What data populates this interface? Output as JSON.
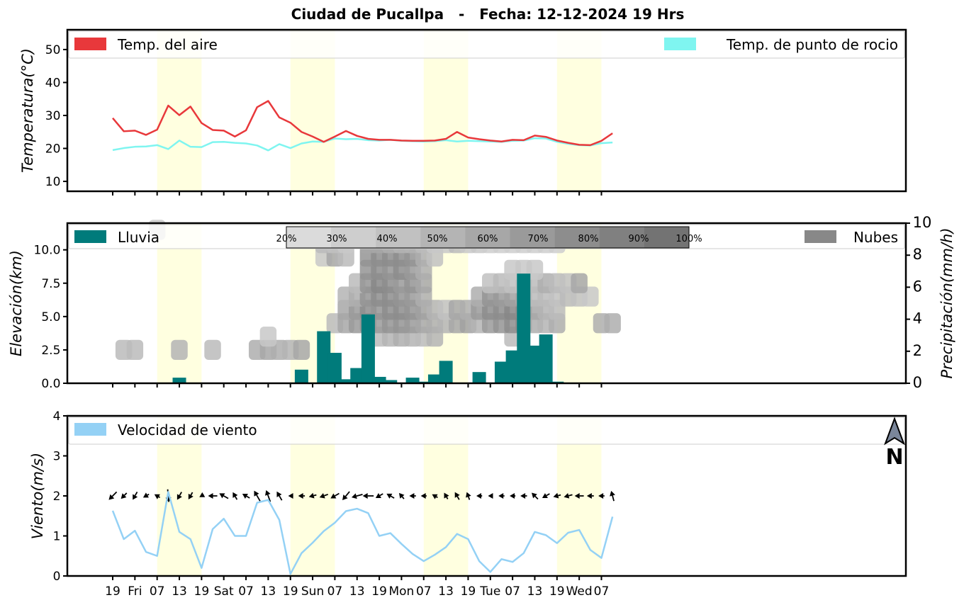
{
  "title": "Ciudad de Pucallpa   -   Fecha: 12-12-2024 19 Hrs",
  "x_tick_labels": [
    "19",
    "Fri",
    "07",
    "13",
    "19",
    "Sat",
    "07",
    "13",
    "19",
    "Sun",
    "07",
    "13",
    "19",
    "Mon",
    "07",
    "13",
    "19",
    "Tue",
    "07",
    "13",
    "19",
    "Wed",
    "07"
  ],
  "colors": {
    "air_temp": "#e8383b",
    "dew_point": "#7ff5f0",
    "rain": "#007b7b",
    "clouds": "#888888",
    "wind_speed": "#94d1f5",
    "daylight": "#ffffe0"
  },
  "chart_data": [
    {
      "type": "line",
      "ylabel": "Temperatura(°C)",
      "ylim": [
        7,
        56
      ],
      "yticks": [
        "10",
        "20",
        "30",
        "40",
        "50"
      ],
      "x_unit": "hours from first tick (3-hour step)",
      "series": [
        {
          "name": "Temp. del aire",
          "values": [
            29.2,
            25.2,
            25.4,
            24.1,
            25.7,
            33.0,
            30.1,
            32.7,
            27.7,
            25.6,
            25.4,
            23.6,
            25.5,
            32.5,
            34.4,
            29.4,
            27.8,
            25.0,
            23.6,
            22.0,
            23.6,
            25.3,
            23.8,
            22.9,
            22.6,
            22.6,
            22.4,
            22.3,
            22.3,
            22.4,
            22.9,
            25.0,
            23.3,
            22.8,
            22.4,
            22.1,
            22.6,
            22.5,
            23.9,
            23.5,
            22.4,
            21.7,
            21.1,
            21.0,
            22.3,
            24.6
          ]
        },
        {
          "name": "Temp. de punto de rocio",
          "values": [
            19.5,
            20.1,
            20.5,
            20.6,
            21.0,
            19.8,
            22.4,
            20.5,
            20.4,
            21.9,
            22.0,
            21.7,
            21.5,
            20.9,
            19.4,
            21.3,
            20.1,
            21.5,
            22.1,
            22.0,
            23.0,
            22.8,
            22.9,
            22.5,
            22.4,
            22.6,
            22.3,
            22.2,
            22.1,
            22.2,
            22.5,
            22.1,
            22.3,
            22.2,
            22.1,
            22.0,
            22.3,
            22.4,
            23.1,
            23.0,
            22.0,
            21.4,
            21.0,
            20.9,
            21.6,
            21.8
          ]
        }
      ],
      "legend": {
        "left": "top-left",
        "right": "top-right"
      }
    },
    {
      "type": "bar",
      "ylabel": "Elevación(km)",
      "ylim": [
        0,
        12
      ],
      "yticks": [
        "0.0",
        "2.5",
        "5.0",
        "7.5",
        "10.0"
      ],
      "y2label": "Precipitación(mm/h)",
      "y2lim": [
        0,
        10
      ],
      "y2ticks": [
        "0",
        "2",
        "4",
        "6",
        "8",
        "10"
      ],
      "series": [
        {
          "name": "Lluvia",
          "values": [
            0,
            0,
            0,
            0,
            0,
            0,
            0.35,
            0,
            0,
            0,
            0,
            0,
            0,
            0,
            0,
            0,
            0,
            0.85,
            0,
            3.25,
            1.9,
            0.25,
            0.95,
            4.3,
            0.4,
            0.2,
            0,
            0.35,
            0.1,
            0.55,
            1.4,
            0,
            0,
            0.7,
            0,
            1.35,
            2.05,
            6.85,
            2.35,
            3.05,
            0.1,
            0,
            0,
            0,
            0,
            0
          ]
        },
        {
          "name": "Nubes"
        }
      ],
      "colorbar_labels": [
        "20%",
        "30%",
        "40%",
        "50%",
        "60%",
        "70%",
        "80%",
        "90%",
        "100%"
      ],
      "cloud_grid": {
        "elevation_km": [
          1.5,
          2.5,
          3.5,
          4.5,
          5.5,
          6.5,
          7.5,
          8.5,
          9.5,
          10.5,
          11.5
        ],
        "coverage_fraction": [
          [
            0,
            0,
            0,
            0,
            0,
            0,
            0,
            0,
            0,
            0,
            0,
            0,
            0,
            0,
            0,
            0,
            0,
            0,
            0,
            0,
            0,
            0,
            0,
            0,
            0,
            0,
            0,
            0,
            0,
            0,
            0,
            0,
            0,
            0,
            0,
            0,
            0,
            0,
            0,
            0,
            0,
            0,
            0,
            0,
            0,
            0
          ],
          [
            0,
            0.45,
            0.45,
            0,
            0,
            0,
            0.5,
            0,
            0,
            0.45,
            0,
            0,
            0,
            0.55,
            0.6,
            0.55,
            0.5,
            0.6,
            0,
            0,
            0,
            0,
            0,
            0,
            0,
            0,
            0,
            0,
            0,
            0,
            0,
            0,
            0,
            0,
            0,
            0,
            0,
            0,
            0,
            0,
            0,
            0,
            0,
            0,
            0,
            0
          ],
          [
            0,
            0,
            0,
            0,
            0,
            0,
            0,
            0,
            0,
            0,
            0,
            0,
            0,
            0,
            0.35,
            0,
            0,
            0,
            0,
            0,
            0,
            0,
            0,
            0,
            0.45,
            0.5,
            0.55,
            0.5,
            0.45,
            0.5,
            0,
            0,
            0,
            0,
            0,
            0,
            0.45,
            0,
            0,
            0,
            0,
            0,
            0,
            0,
            0,
            0
          ],
          [
            0,
            0,
            0,
            0,
            0,
            0,
            0,
            0,
            0,
            0,
            0,
            0,
            0,
            0,
            0,
            0,
            0,
            0,
            0,
            0,
            0.45,
            0.6,
            0.7,
            0.75,
            0.7,
            0.75,
            0.75,
            0.7,
            0.6,
            0.55,
            0.5,
            0.6,
            0.65,
            0.5,
            0.7,
            0.75,
            0.8,
            0.8,
            0.55,
            0.5,
            0.55,
            0,
            0,
            0,
            0.55,
            0.55
          ],
          [
            0,
            0,
            0,
            0,
            0,
            0,
            0,
            0,
            0,
            0,
            0,
            0,
            0,
            0,
            0,
            0,
            0,
            0,
            0,
            0,
            0,
            0.6,
            0.7,
            0.8,
            0.75,
            0.8,
            0.8,
            0.75,
            0.65,
            0.5,
            0.4,
            0.6,
            0.55,
            0.7,
            0.8,
            0.8,
            0.85,
            0.8,
            0.6,
            0.5,
            0.45,
            0,
            0,
            0,
            0,
            0
          ],
          [
            0,
            0,
            0,
            0,
            0,
            0,
            0,
            0,
            0,
            0,
            0,
            0,
            0,
            0,
            0,
            0,
            0,
            0,
            0,
            0,
            0,
            0.5,
            0.55,
            0.75,
            0.8,
            0.8,
            0.75,
            0.7,
            0.55,
            0,
            0,
            0,
            0,
            0.55,
            0.75,
            0.7,
            0.65,
            0.6,
            0.45,
            0.45,
            0.4,
            0.45,
            0.4,
            0.35,
            0,
            0
          ],
          [
            0,
            0,
            0,
            0,
            0,
            0,
            0,
            0,
            0,
            0,
            0,
            0,
            0,
            0,
            0,
            0,
            0,
            0,
            0,
            0,
            0,
            0,
            0.45,
            0.75,
            0.85,
            0.8,
            0.7,
            0.75,
            0.6,
            0,
            0,
            0,
            0,
            0,
            0.4,
            0.45,
            0.4,
            0.4,
            0.45,
            0.55,
            0.45,
            0.4,
            0.6,
            0,
            0,
            0
          ],
          [
            0,
            0,
            0,
            0,
            0,
            0,
            0,
            0,
            0,
            0,
            0,
            0,
            0,
            0,
            0,
            0,
            0,
            0,
            0,
            0,
            0,
            0,
            0,
            0.75,
            0.8,
            0.75,
            0.8,
            0.7,
            0.55,
            0,
            0,
            0,
            0,
            0,
            0,
            0,
            0.35,
            0.35,
            0.35,
            0,
            0,
            0,
            0,
            0,
            0,
            0
          ],
          [
            0,
            0,
            0,
            0,
            0,
            0,
            0,
            0,
            0,
            0,
            0,
            0,
            0,
            0,
            0,
            0,
            0,
            0,
            0,
            0.35,
            0.6,
            0.45,
            0,
            0.75,
            0.8,
            0.8,
            0.8,
            0.75,
            0.55,
            0.4,
            0,
            0,
            0,
            0,
            0,
            0,
            0,
            0,
            0,
            0,
            0,
            0,
            0,
            0,
            0,
            0
          ],
          [
            0,
            0,
            0,
            0,
            0,
            0,
            0,
            0,
            0,
            0,
            0,
            0,
            0,
            0,
            0,
            0,
            0,
            0,
            0,
            0.45,
            0.4,
            0.35,
            0,
            0.6,
            0.6,
            0.55,
            0.5,
            0.5,
            0.45,
            0.35,
            0.35,
            0.45,
            0.35,
            0.35,
            0.3,
            0.3,
            0.3,
            0.3,
            0.3,
            0.3,
            0.3,
            0,
            0,
            0,
            0,
            0
          ],
          [
            0,
            0,
            0,
            0,
            0.35,
            0,
            0,
            0,
            0,
            0,
            0,
            0,
            0,
            0,
            0,
            0,
            0,
            0,
            0,
            0,
            0,
            0,
            0,
            0,
            0,
            0,
            0,
            0,
            0,
            0,
            0,
            0,
            0,
            0,
            0,
            0,
            0,
            0,
            0,
            0,
            0,
            0,
            0,
            0,
            0,
            0
          ]
        ]
      },
      "legend": {
        "left": "top-left",
        "right": "top-right"
      }
    },
    {
      "type": "line",
      "ylabel": "Viento(m/s)",
      "ylim": [
        0,
        4
      ],
      "yticks": [
        "0",
        "1",
        "2",
        "3",
        "4"
      ],
      "series": [
        {
          "name": "Velocidad de viento",
          "values": [
            1.63,
            0.92,
            1.13,
            0.6,
            0.5,
            2.1,
            1.1,
            0.92,
            0.2,
            1.17,
            1.43,
            1.0,
            1.0,
            1.83,
            1.9,
            1.4,
            0.05,
            0.57,
            0.83,
            1.12,
            1.33,
            1.62,
            1.68,
            1.57,
            1.0,
            1.07,
            0.8,
            0.55,
            0.37,
            0.53,
            0.72,
            1.05,
            0.92,
            0.37,
            0.1,
            0.42,
            0.35,
            0.57,
            1.1,
            1.02,
            0.82,
            1.08,
            1.15,
            0.65,
            0.45,
            1.48
          ]
        }
      ],
      "wind_direction_to_deg": [
        225,
        225,
        210,
        240,
        300,
        175,
        210,
        210,
        240,
        270,
        300,
        330,
        300,
        330,
        340,
        330,
        270,
        270,
        255,
        250,
        240,
        220,
        255,
        270,
        240,
        300,
        320,
        270,
        270,
        300,
        330,
        330,
        340,
        270,
        270,
        270,
        270,
        270,
        315,
        240,
        255,
        255,
        270,
        270,
        270,
        345
      ],
      "legend": "top-left",
      "compass_label": "N"
    }
  ]
}
